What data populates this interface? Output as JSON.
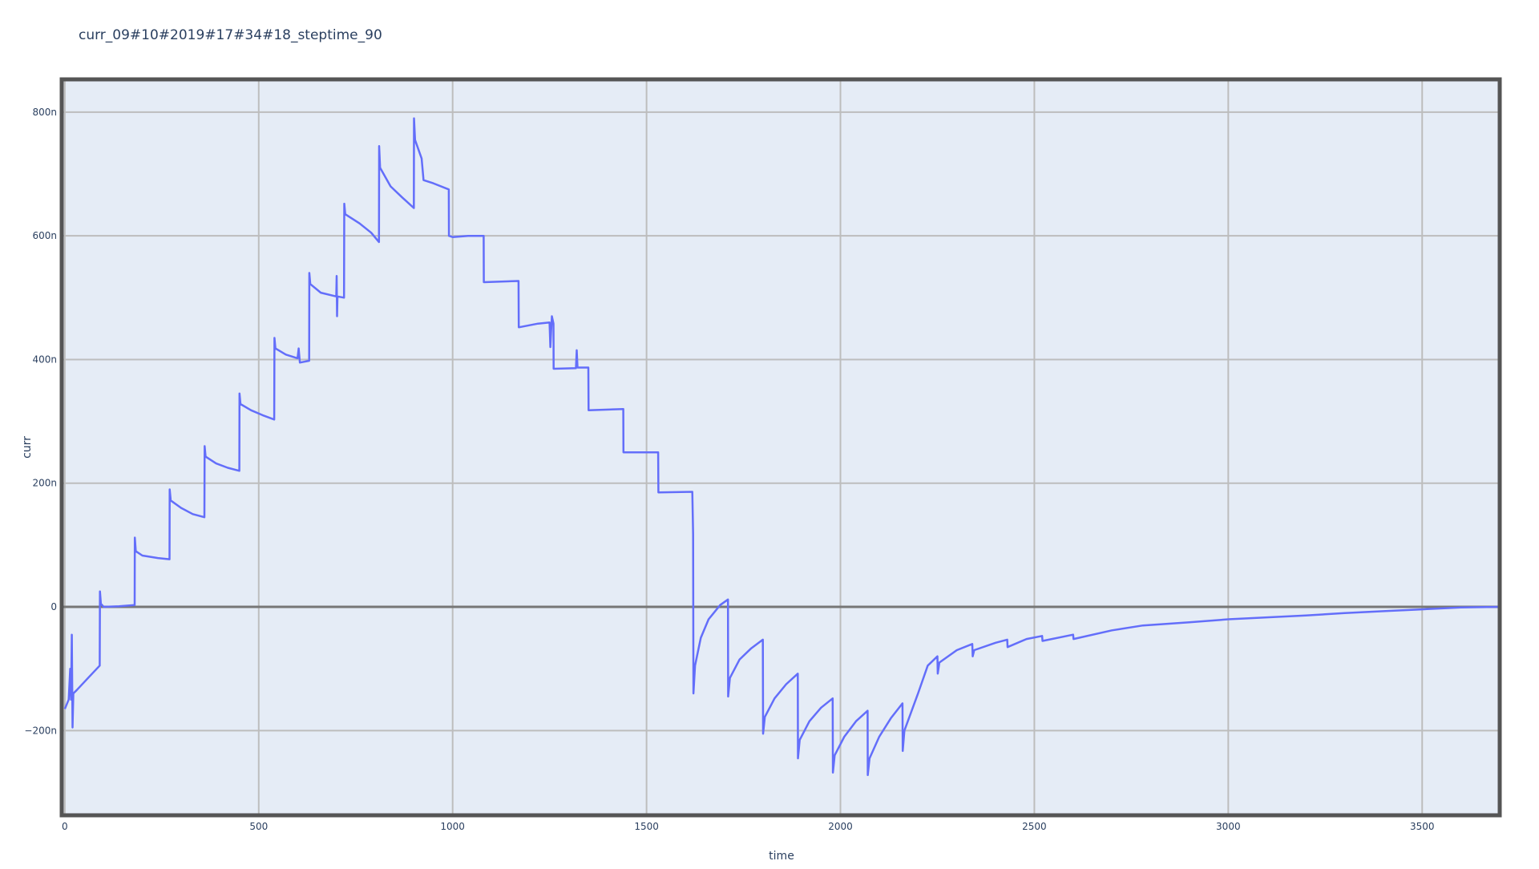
{
  "chart_data": {
    "type": "line",
    "title": "curr_09#10#2019#17#34#18_steptime_90",
    "x_label": "time",
    "y_label": "curr",
    "color": "#636efa",
    "grid": true,
    "xlim": [
      -8,
      3700
    ],
    "xticks": [
      0,
      500,
      1000,
      1500,
      2000,
      2500,
      3000,
      3500
    ],
    "ylim": [
      -337,
      853
    ],
    "yticks": [
      {
        "value": -200,
        "label": "−200n"
      },
      0,
      {
        "value": 200,
        "label": "200n"
      },
      {
        "value": 400,
        "label": "400n"
      },
      {
        "value": 600,
        "label": "600n"
      },
      {
        "value": 800,
        "label": "800n"
      }
    ],
    "x": [
      0,
      10,
      14,
      16,
      18,
      20,
      22,
      30,
      60,
      90,
      90.5,
      93,
      100,
      140,
      180,
      180.5,
      183,
      200,
      240,
      270,
      270.5,
      273,
      300,
      330,
      360,
      360.5,
      363,
      390,
      420,
      450,
      450.5,
      453,
      480,
      510,
      540,
      540.5,
      543,
      570,
      600,
      603,
      606,
      630,
      630.5,
      633,
      660,
      700,
      701,
      702,
      703,
      720,
      720.5,
      723,
      760,
      790,
      810,
      810.5,
      813,
      840,
      870,
      900,
      900.5,
      903,
      920,
      925,
      950,
      990,
      990.5,
      1000,
      1040,
      1080,
      1080.5,
      1170,
      1170.5,
      1220,
      1250,
      1252,
      1256,
      1260,
      1260.5,
      1318,
      1320,
      1322,
      1350,
      1350.5,
      1440,
      1440.5,
      1530,
      1530.5,
      1618,
      1620,
      1621,
      1625,
      1640,
      1660,
      1690,
      1710,
      1710.5,
      1715,
      1740,
      1770,
      1800,
      1800.5,
      1805,
      1830,
      1860,
      1890,
      1890.5,
      1895,
      1920,
      1950,
      1980,
      1980.5,
      1985,
      2010,
      2040,
      2070,
      2070.5,
      2075,
      2100,
      2130,
      2160,
      2160.5,
      2165,
      2200,
      2225,
      2250,
      2251,
      2255,
      2300,
      2340,
      2341,
      2345,
      2400,
      2430,
      2431,
      2480,
      2520,
      2521,
      2600,
      2601,
      2700,
      2780,
      2900,
      3000,
      3100,
      3200,
      3300,
      3400,
      3500,
      3600,
      3700
    ],
    "values": [
      -165,
      -150,
      -100,
      -150,
      -45,
      -195,
      -140,
      -135,
      -115,
      -95,
      25,
      5,
      0,
      1,
      3,
      112,
      90,
      83,
      79,
      77,
      190,
      172,
      160,
      150,
      145,
      260,
      243,
      232,
      225,
      220,
      345,
      328,
      318,
      310,
      303,
      435,
      418,
      408,
      402,
      418,
      395,
      398,
      540,
      522,
      508,
      502,
      535,
      470,
      502,
      500,
      652,
      635,
      620,
      605,
      590,
      745,
      710,
      680,
      662,
      645,
      790,
      755,
      725,
      690,
      685,
      675,
      600,
      598,
      600,
      600,
      525,
      527,
      452,
      458,
      460,
      420,
      470,
      458,
      385,
      386,
      415,
      387,
      387,
      318,
      320,
      250,
      250,
      185,
      186,
      118,
      -140,
      -95,
      -50,
      -20,
      3,
      12,
      -145,
      -115,
      -85,
      -67,
      -53,
      -205,
      -178,
      -148,
      -125,
      -108,
      -245,
      -215,
      -185,
      -163,
      -148,
      -268,
      -240,
      -210,
      -185,
      -168,
      -272,
      -245,
      -210,
      -180,
      -156,
      -233,
      -200,
      -140,
      -95,
      -80,
      -108,
      -90,
      -70,
      -60,
      -80,
      -70,
      -58,
      -53,
      -65,
      -52,
      -47,
      -55,
      -45,
      -52,
      -38,
      -30,
      -25,
      -20,
      -17,
      -14,
      -10,
      -7,
      -4,
      -1,
      0
    ]
  }
}
